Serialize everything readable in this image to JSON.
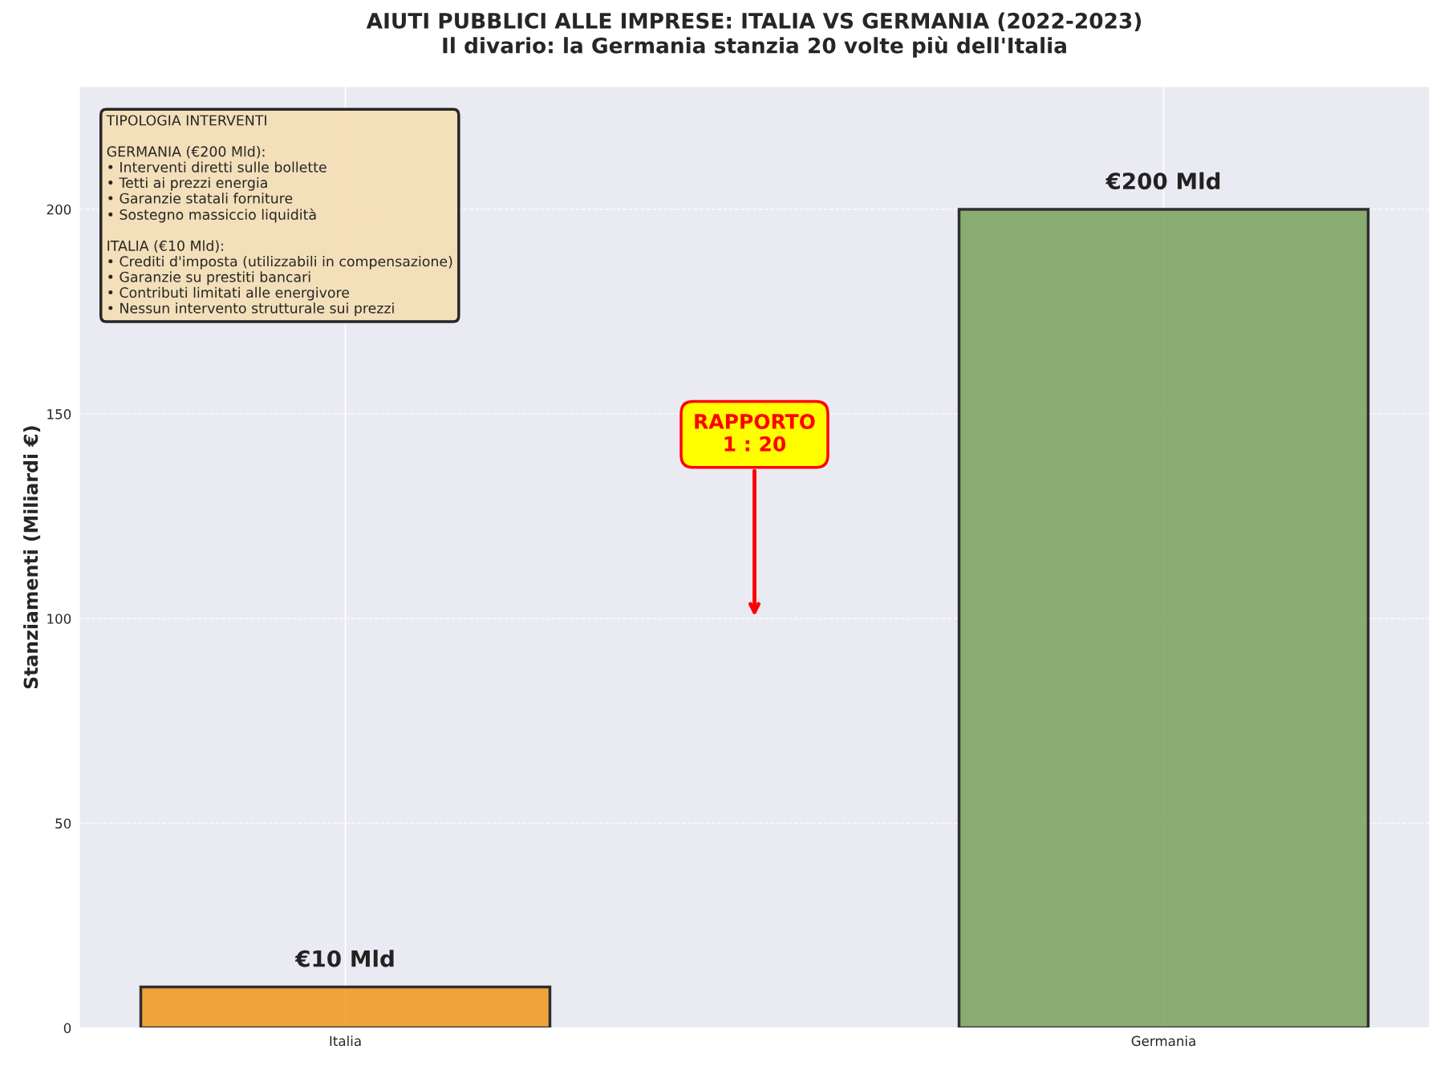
{
  "chart_data": {
    "type": "bar",
    "title": "AIUTI PUBBLICI ALLE IMPRESE: ITALIA VS GERMANIA (2022-2023)\nIl divario: la Germania stanzia 20 volte più dell'Italia",
    "ylabel": "Stanziamenti (Miliardi €)",
    "categories": [
      "Italia",
      "Germania"
    ],
    "values": [
      10,
      200
    ],
    "colors": [
      "#f09c27",
      "#7fa666"
    ],
    "value_labels": [
      "€10 Mld",
      "€200 Mld"
    ],
    "ylim": [
      0,
      230
    ],
    "yticks": [
      0,
      50,
      100,
      150,
      200
    ],
    "grid": true,
    "annotations": [
      "RAPPORTO\n1 : 20",
      "TIPOLOGIA INTERVENTI\n\nGERMANIA (€200 Mld):\n• Interventi diretti sulle bollette\n• Tetti ai prezzi energia\n• Garanzie statali forniture\n• Sostegno massiccio liquidità\n\nITALIA (€10 Mld):\n• Crediti d'imposta (utilizzabili in compensazione)\n• Garanzie su prestiti bancari\n• Contributi limitati alle energivore\n• Nessun intervento strutturale sui prezzi"
    ]
  }
}
